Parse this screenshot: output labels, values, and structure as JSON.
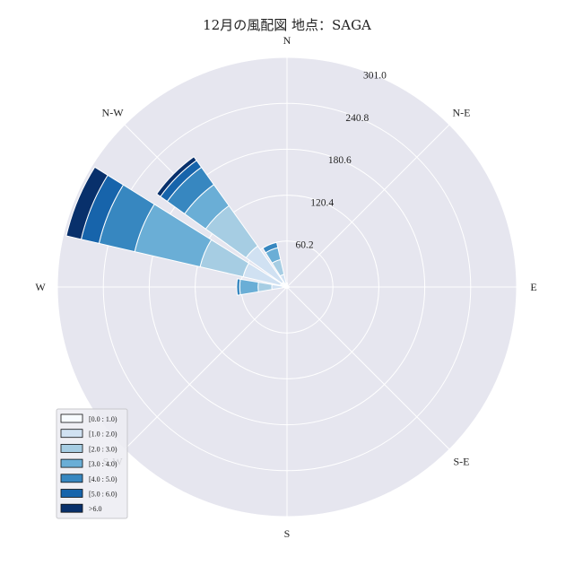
{
  "chart_data": {
    "type": "windrose",
    "title": "12月の風配図 地点：SAGA",
    "direction_labels": [
      "N",
      "N-E",
      "E",
      "S-E",
      "S",
      "S-W",
      "W",
      "N-W"
    ],
    "r_ticks": [
      "60.2",
      "120.4",
      "180.6",
      "240.8",
      "301.0"
    ],
    "r_max": 301.0,
    "grid": true,
    "legend_position": "lower-left",
    "speed_bins": [
      {
        "label": "[0.0 : 1.0)",
        "color": "#f7fbff"
      },
      {
        "label": "[1.0 : 2.0)",
        "color": "#d0e1f2"
      },
      {
        "label": "[2.0 : 3.0)",
        "color": "#a6cde3"
      },
      {
        "label": "[3.0 : 4.0)",
        "color": "#6aaed6"
      },
      {
        "label": "[4.0 : 5.0)",
        "color": "#3787c0"
      },
      {
        "label": "[5.0 : 6.0)",
        "color": "#1764ab"
      },
      {
        "label": ">6.0",
        "color": "#08306b"
      }
    ],
    "sectors": [
      {
        "direction": "N",
        "values": [
          5,
          0,
          0,
          0,
          0,
          0,
          0
        ]
      },
      {
        "direction": "NNE",
        "values": [
          2,
          0,
          0,
          0,
          0,
          0,
          0
        ]
      },
      {
        "direction": "NE",
        "values": [
          2,
          0,
          0,
          0,
          0,
          0,
          0
        ]
      },
      {
        "direction": "ENE",
        "values": [
          1,
          0,
          0,
          0,
          0,
          0,
          0
        ]
      },
      {
        "direction": "E",
        "values": [
          3,
          0,
          0,
          0,
          0,
          0,
          0
        ]
      },
      {
        "direction": "ESE",
        "values": [
          1,
          0,
          0,
          0,
          0,
          0,
          0
        ]
      },
      {
        "direction": "SE",
        "values": [
          2,
          0,
          0,
          0,
          0,
          0,
          0
        ]
      },
      {
        "direction": "SSE",
        "values": [
          1,
          0,
          0,
          0,
          0,
          0,
          0
        ]
      },
      {
        "direction": "S",
        "values": [
          2,
          0,
          0,
          0,
          0,
          0,
          0
        ]
      },
      {
        "direction": "SSW",
        "values": [
          1,
          0,
          0,
          0,
          0,
          0,
          0
        ]
      },
      {
        "direction": "SW",
        "values": [
          2,
          0,
          0,
          0,
          0,
          0,
          0
        ]
      },
      {
        "direction": "WSW",
        "values": [
          3,
          0,
          0,
          0,
          0,
          0,
          0
        ]
      },
      {
        "direction": "W",
        "values": [
          6,
          14,
          18,
          24,
          4,
          0,
          0
        ]
      },
      {
        "direction": "WNW",
        "values": [
          9,
          50,
          58,
          88,
          48,
          24,
          20
        ]
      },
      {
        "direction": "NW",
        "values": [
          8,
          58,
          65,
          34,
          28,
          11,
          6
        ]
      },
      {
        "direction": "NNW",
        "values": [
          5,
          12,
          20,
          16,
          7,
          0,
          0
        ]
      }
    ]
  }
}
